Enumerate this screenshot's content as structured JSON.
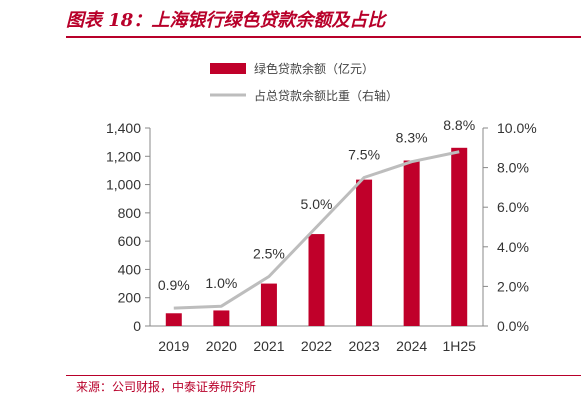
{
  "header": {
    "title": "图表 18：上海银行绿色贷款余额及占比"
  },
  "footer": {
    "source": "来源：公司财报，中泰证券研究所"
  },
  "colors": {
    "bar": "#c0002a",
    "line": "#bdbdbd",
    "accent": "#b8002a"
  },
  "chart_data": {
    "type": "bar",
    "categories": [
      "2019",
      "2020",
      "2021",
      "2022",
      "2023",
      "2024",
      "1H25"
    ],
    "series": [
      {
        "name": "绿色贷款余额（亿元）",
        "type": "bar",
        "axis": "left",
        "values": [
          90,
          110,
          300,
          650,
          1035,
          1170,
          1260
        ]
      },
      {
        "name": "占总贷款余额比重（右轴）",
        "type": "line",
        "axis": "right",
        "values": [
          0.9,
          1.0,
          2.5,
          5.0,
          7.5,
          8.3,
          8.8
        ],
        "labels": [
          "0.9%",
          "1.0%",
          "2.5%",
          "5.0%",
          "7.5%",
          "8.3%",
          "8.8%"
        ]
      }
    ],
    "y_left": {
      "lim": [
        0,
        1400
      ],
      "ticks": [
        "0",
        "200",
        "400",
        "600",
        "800",
        "1,000",
        "1,200",
        "1,400"
      ]
    },
    "y_right": {
      "lim": [
        0,
        10
      ],
      "ticks": [
        "0.0%",
        "2.0%",
        "4.0%",
        "6.0%",
        "8.0%",
        "10.0%"
      ]
    },
    "legend_position": "top-center",
    "grid": false
  }
}
